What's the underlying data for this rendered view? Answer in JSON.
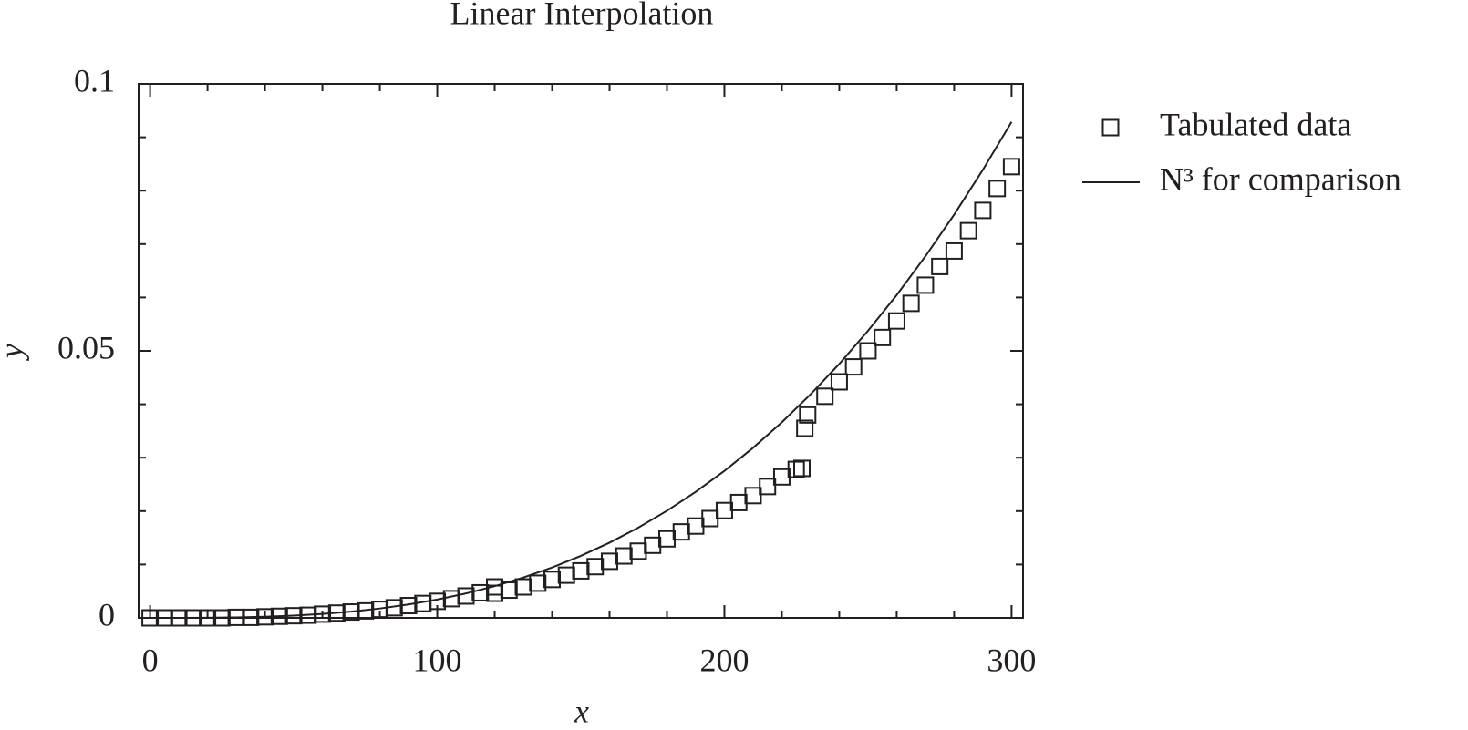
{
  "chart_data": {
    "type": "scatter",
    "title": "Linear Interpolation",
    "x_label": "x",
    "y_label": "y",
    "xlim": [
      -4,
      304
    ],
    "ylim": [
      0,
      0.1
    ],
    "xticks": [
      0,
      100,
      200,
      300
    ],
    "yticks": [
      0,
      0.05,
      0.1
    ],
    "minor_ticks": true,
    "legend": "outside-right",
    "series": [
      {
        "name": "Tabulated data",
        "type": "scatter",
        "color": "#231f20",
        "x": [
          0,
          5,
          10,
          15,
          20,
          25,
          30,
          35,
          40,
          45,
          50,
          55,
          60,
          65,
          70,
          75,
          80,
          85,
          90,
          95,
          100,
          105,
          110,
          115,
          120,
          120,
          125,
          130,
          135,
          140,
          145,
          150,
          155,
          160,
          165,
          170,
          175,
          180,
          185,
          190,
          195,
          200,
          205,
          210,
          215,
          220,
          225,
          227,
          228,
          229,
          235,
          240,
          245,
          250,
          255,
          260,
          265,
          270,
          275,
          280,
          285,
          290,
          295,
          300
        ],
        "values": [
          0,
          0,
          0,
          0,
          0,
          0,
          0.0001,
          0.0001,
          0.0002,
          0.0003,
          0.0004,
          0.0005,
          0.0007,
          0.0009,
          0.0011,
          0.0013,
          0.0016,
          0.0019,
          0.0023,
          0.0027,
          0.0031,
          0.0036,
          0.0041,
          0.0047,
          0.0058,
          0.0046,
          0.0052,
          0.0058,
          0.0065,
          0.0072,
          0.008,
          0.0088,
          0.0096,
          0.0106,
          0.0116,
          0.0125,
          0.0136,
          0.0148,
          0.0161,
          0.0172,
          0.0186,
          0.0201,
          0.0216,
          0.0229,
          0.0246,
          0.0264,
          0.0278,
          0.028,
          0.0355,
          0.038,
          0.0415,
          0.0442,
          0.047,
          0.05,
          0.0525,
          0.0556,
          0.0589,
          0.0623,
          0.0658,
          0.0687,
          0.0725,
          0.0763,
          0.0804,
          0.0845
        ]
      },
      {
        "name": "N³ for comparison",
        "type": "line",
        "color": "#231f20",
        "x": [
          0,
          10,
          20,
          30,
          40,
          50,
          60,
          70,
          80,
          90,
          100,
          110,
          120,
          130,
          140,
          150,
          160,
          170,
          180,
          190,
          200,
          210,
          220,
          230,
          240,
          250,
          260,
          270,
          280,
          290,
          300
        ],
        "values": [
          0,
          3.4e-06,
          3e-05,
          9e-05,
          0.00022,
          0.00043,
          0.00074,
          0.00118,
          0.00176,
          0.00251,
          0.00344,
          0.00458,
          0.00594,
          0.00756,
          0.00944,
          0.01161,
          0.01409,
          0.0169,
          0.02006,
          0.0236,
          0.02752,
          0.03186,
          0.03663,
          0.04186,
          0.04755,
          0.05375,
          0.06046,
          0.06771,
          0.07551,
          0.0839,
          0.09288
        ]
      }
    ]
  }
}
